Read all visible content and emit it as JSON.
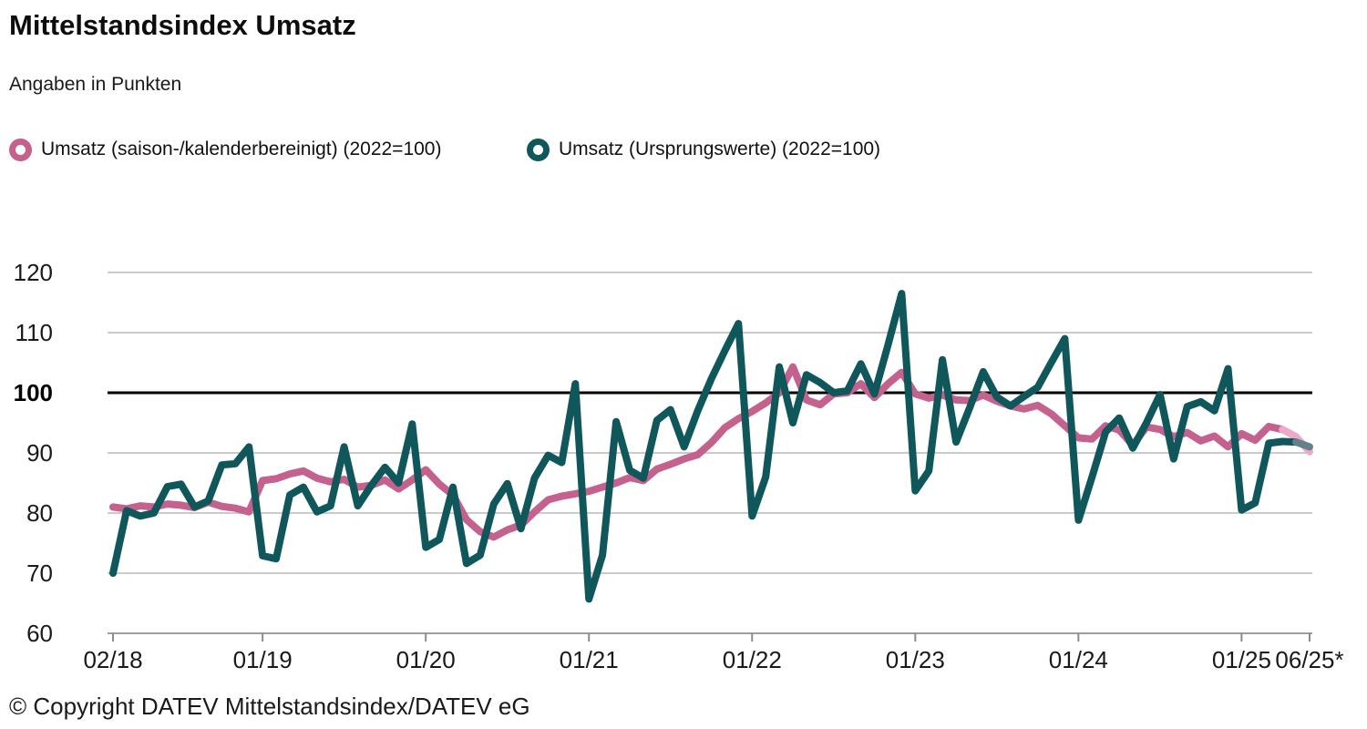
{
  "header": {
    "title": "Mittelstandsindex Umsatz",
    "subtitle": "Angaben in Punkten"
  },
  "legend": {
    "items": [
      {
        "label": "Umsatz (saison-/kalenderbereinigt) (2022=100)",
        "color": "#C4618C"
      },
      {
        "label": "Umsatz (Ursprungswerte) (2022=100)",
        "color": "#0F575B"
      }
    ]
  },
  "footer": {
    "copyright": "© Copyright DATEV Mittelstandsindex/DATEV eG"
  },
  "chart_data": {
    "type": "line",
    "title": "Mittelstandsindex Umsatz",
    "unit_note": "Angaben in Punkten",
    "index_base_note": "2022=100",
    "x_tick_labels": [
      "02/18",
      "01/19",
      "01/20",
      "01/21",
      "01/22",
      "01/23",
      "01/24",
      "01/25",
      "06/25*"
    ],
    "x_tick_month_indices": [
      0,
      11,
      23,
      35,
      47,
      59,
      71,
      83,
      88
    ],
    "months_start": "02/18",
    "months_end": "06/25",
    "last_value_preliminary_marker": "*",
    "y_ticks": [
      120,
      110,
      100,
      90,
      80,
      70,
      60
    ],
    "ylim": [
      60,
      120
    ],
    "baseline_value": 100,
    "grid": "horizontal",
    "legend_position": "top",
    "grid_color": "#CBCBCB",
    "baseline_color": "#000000",
    "axis_color": "#9E9E9E",
    "text_color": "#1A1A1A",
    "series": [
      {
        "name": "Umsatz (saison-/kalenderbereinigt) (2022=100)",
        "color": "#C4618C",
        "preliminary_color": "#ECAAC8",
        "preliminary_from_index": 86,
        "values": [
          81,
          80.7,
          81.2,
          81,
          81.5,
          81.3,
          80.9,
          81.8,
          81.1,
          80.8,
          80.2,
          85.4,
          85.7,
          86.5,
          87,
          85.8,
          85.2,
          85.6,
          84.3,
          84.6,
          85.5,
          84,
          85.5,
          87.2,
          84.8,
          83,
          78.9,
          76.9,
          76,
          77.2,
          78,
          80.2,
          82.2,
          82.8,
          83.2,
          83.6,
          84.3,
          85,
          85.9,
          85.4,
          87.3,
          88.1,
          89,
          89.7,
          91.7,
          94.2,
          95.7,
          96.9,
          98.3,
          100,
          104.3,
          98.8,
          98,
          99.8,
          100,
          101.5,
          99.2,
          101.5,
          103.4,
          99.8,
          99.1,
          99.6,
          98.8,
          98.7,
          99.6,
          98.6,
          97.8,
          97.3,
          97.9,
          96.5,
          94.5,
          92.5,
          92.3,
          94.5,
          93.8,
          91.3,
          94.3,
          93.9,
          92.7,
          93.4,
          92,
          92.8,
          91,
          93.2,
          92.1,
          94.4,
          93.9,
          92.7,
          90.2
        ]
      },
      {
        "name": "Umsatz (Ursprungswerte) (2022=100)",
        "color": "#0F575B",
        "preliminary_color": "#64808A",
        "preliminary_from_index": 87,
        "values": [
          70,
          80.4,
          79.5,
          80,
          84.4,
          84.8,
          81,
          82,
          88,
          88.2,
          91,
          72.9,
          72.4,
          83,
          84.3,
          80.2,
          81.2,
          91,
          81.2,
          84.6,
          87.6,
          85,
          94.8,
          74.3,
          75.6,
          84.3,
          71.6,
          73,
          81.5,
          84.9,
          77.4,
          85.8,
          89.6,
          88.4,
          101.5,
          65.7,
          73,
          95.2,
          87.1,
          85.8,
          95.4,
          97.2,
          91,
          97,
          102.3,
          107,
          111.5,
          79.5,
          86,
          104.3,
          95,
          103,
          101.7,
          100,
          100.3,
          104.8,
          99.8,
          108,
          116.5,
          83.7,
          87,
          105.5,
          91.8,
          97.5,
          103.5,
          99.3,
          97.8,
          99.4,
          100.9,
          105,
          109,
          78.8,
          86,
          93.5,
          95.8,
          90.8,
          95,
          99.7,
          89,
          97.7,
          98.5,
          97,
          104,
          80.5,
          81.7,
          91.6,
          91.9,
          91.8,
          91
        ]
      }
    ]
  }
}
